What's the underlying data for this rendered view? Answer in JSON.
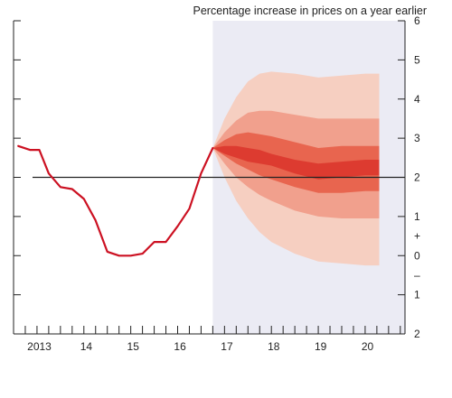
{
  "chart_data": {
    "type": "line",
    "title": "Percentage increase in prices on a year earlier",
    "xlabel": "",
    "ylabel": "",
    "xlim": [
      2012.5,
      2020.85
    ],
    "ylim": [
      -2,
      6
    ],
    "x_tick_labels": [
      {
        "x": 2013.0,
        "label": "2013"
      },
      {
        "x": 2014.0,
        "label": "14"
      },
      {
        "x": 2015.0,
        "label": "15"
      },
      {
        "x": 2016.0,
        "label": "16"
      },
      {
        "x": 2017.0,
        "label": "17"
      },
      {
        "x": 2018.0,
        "label": "18"
      },
      {
        "x": 2019.0,
        "label": "19"
      },
      {
        "x": 2020.0,
        "label": "20"
      }
    ],
    "y_tick_labels": [
      {
        "y": 6,
        "label": "6"
      },
      {
        "y": 5,
        "label": "5"
      },
      {
        "y": 4,
        "label": "4"
      },
      {
        "y": 3,
        "label": "3"
      },
      {
        "y": 2,
        "label": "2"
      },
      {
        "y": 1,
        "label": "1"
      },
      {
        "y": 0,
        "label": "0"
      },
      {
        "y": -1,
        "label": "1"
      },
      {
        "y": -2,
        "label": "2"
      }
    ],
    "sign_labels": [
      {
        "y": 0.5,
        "label": "+"
      },
      {
        "y": -0.5,
        "label": "–"
      }
    ],
    "target_line": {
      "y": 2.0
    },
    "forecast_start": 2016.75,
    "series": [
      {
        "color": "#cc1122",
        "x": [
          2012.6,
          2012.85,
          2013.05,
          2013.25,
          2013.5,
          2013.75,
          2014.0,
          2014.25,
          2014.5,
          2014.75,
          2015.0,
          2015.25,
          2015.5,
          2015.75,
          2016.0,
          2016.25,
          2016.5,
          2016.75
        ],
        "y": [
          2.8,
          2.7,
          2.7,
          2.1,
          1.75,
          1.7,
          1.45,
          0.9,
          0.1,
          0.0,
          0.0,
          0.05,
          0.35,
          0.35,
          0.75,
          1.2,
          2.1,
          2.75
        ]
      }
    ],
    "fan_bands": [
      {
        "color": "#f6cfc1",
        "x": [
          2016.75,
          2017.0,
          2017.25,
          2017.5,
          2017.75,
          2018.0,
          2018.5,
          2019.0,
          2019.5,
          2020.0,
          2020.3
        ],
        "upper": [
          2.75,
          3.5,
          4.05,
          4.45,
          4.65,
          4.7,
          4.65,
          4.55,
          4.6,
          4.65,
          4.65
        ],
        "lower": [
          2.75,
          2.0,
          1.4,
          0.95,
          0.6,
          0.35,
          0.05,
          -0.15,
          -0.2,
          -0.25,
          -0.25
        ]
      },
      {
        "color": "#f1a08d",
        "x": [
          2016.75,
          2017.0,
          2017.25,
          2017.5,
          2017.75,
          2018.0,
          2018.5,
          2019.0,
          2019.5,
          2020.0,
          2020.3
        ],
        "upper": [
          2.75,
          3.15,
          3.45,
          3.65,
          3.7,
          3.7,
          3.6,
          3.5,
          3.5,
          3.5,
          3.5
        ],
        "lower": [
          2.75,
          2.35,
          2.0,
          1.75,
          1.55,
          1.4,
          1.15,
          1.0,
          0.95,
          0.95,
          0.95
        ]
      },
      {
        "color": "#e8654f",
        "x": [
          2016.75,
          2017.0,
          2017.25,
          2017.5,
          2017.75,
          2018.0,
          2018.5,
          2019.0,
          2019.5,
          2020.0,
          2020.3
        ],
        "upper": [
          2.75,
          2.95,
          3.1,
          3.15,
          3.1,
          3.05,
          2.9,
          2.75,
          2.8,
          2.8,
          2.8
        ],
        "lower": [
          2.75,
          2.55,
          2.35,
          2.2,
          2.05,
          1.95,
          1.75,
          1.6,
          1.6,
          1.65,
          1.65
        ]
      },
      {
        "color": "#dd3b30",
        "x": [
          2016.75,
          2017.0,
          2017.25,
          2017.5,
          2017.75,
          2018.0,
          2018.5,
          2019.0,
          2019.5,
          2020.0,
          2020.3
        ],
        "upper": [
          2.75,
          2.8,
          2.8,
          2.75,
          2.7,
          2.6,
          2.45,
          2.35,
          2.4,
          2.45,
          2.45
        ],
        "lower": [
          2.75,
          2.6,
          2.5,
          2.4,
          2.35,
          2.3,
          2.1,
          1.95,
          2.0,
          2.05,
          2.05
        ]
      }
    ],
    "grid": false,
    "legend": "none",
    "colors": {
      "line": "#cc1122",
      "forecast_background": "#ebebf4",
      "axis": "#222222",
      "target_line": "#222222"
    }
  }
}
